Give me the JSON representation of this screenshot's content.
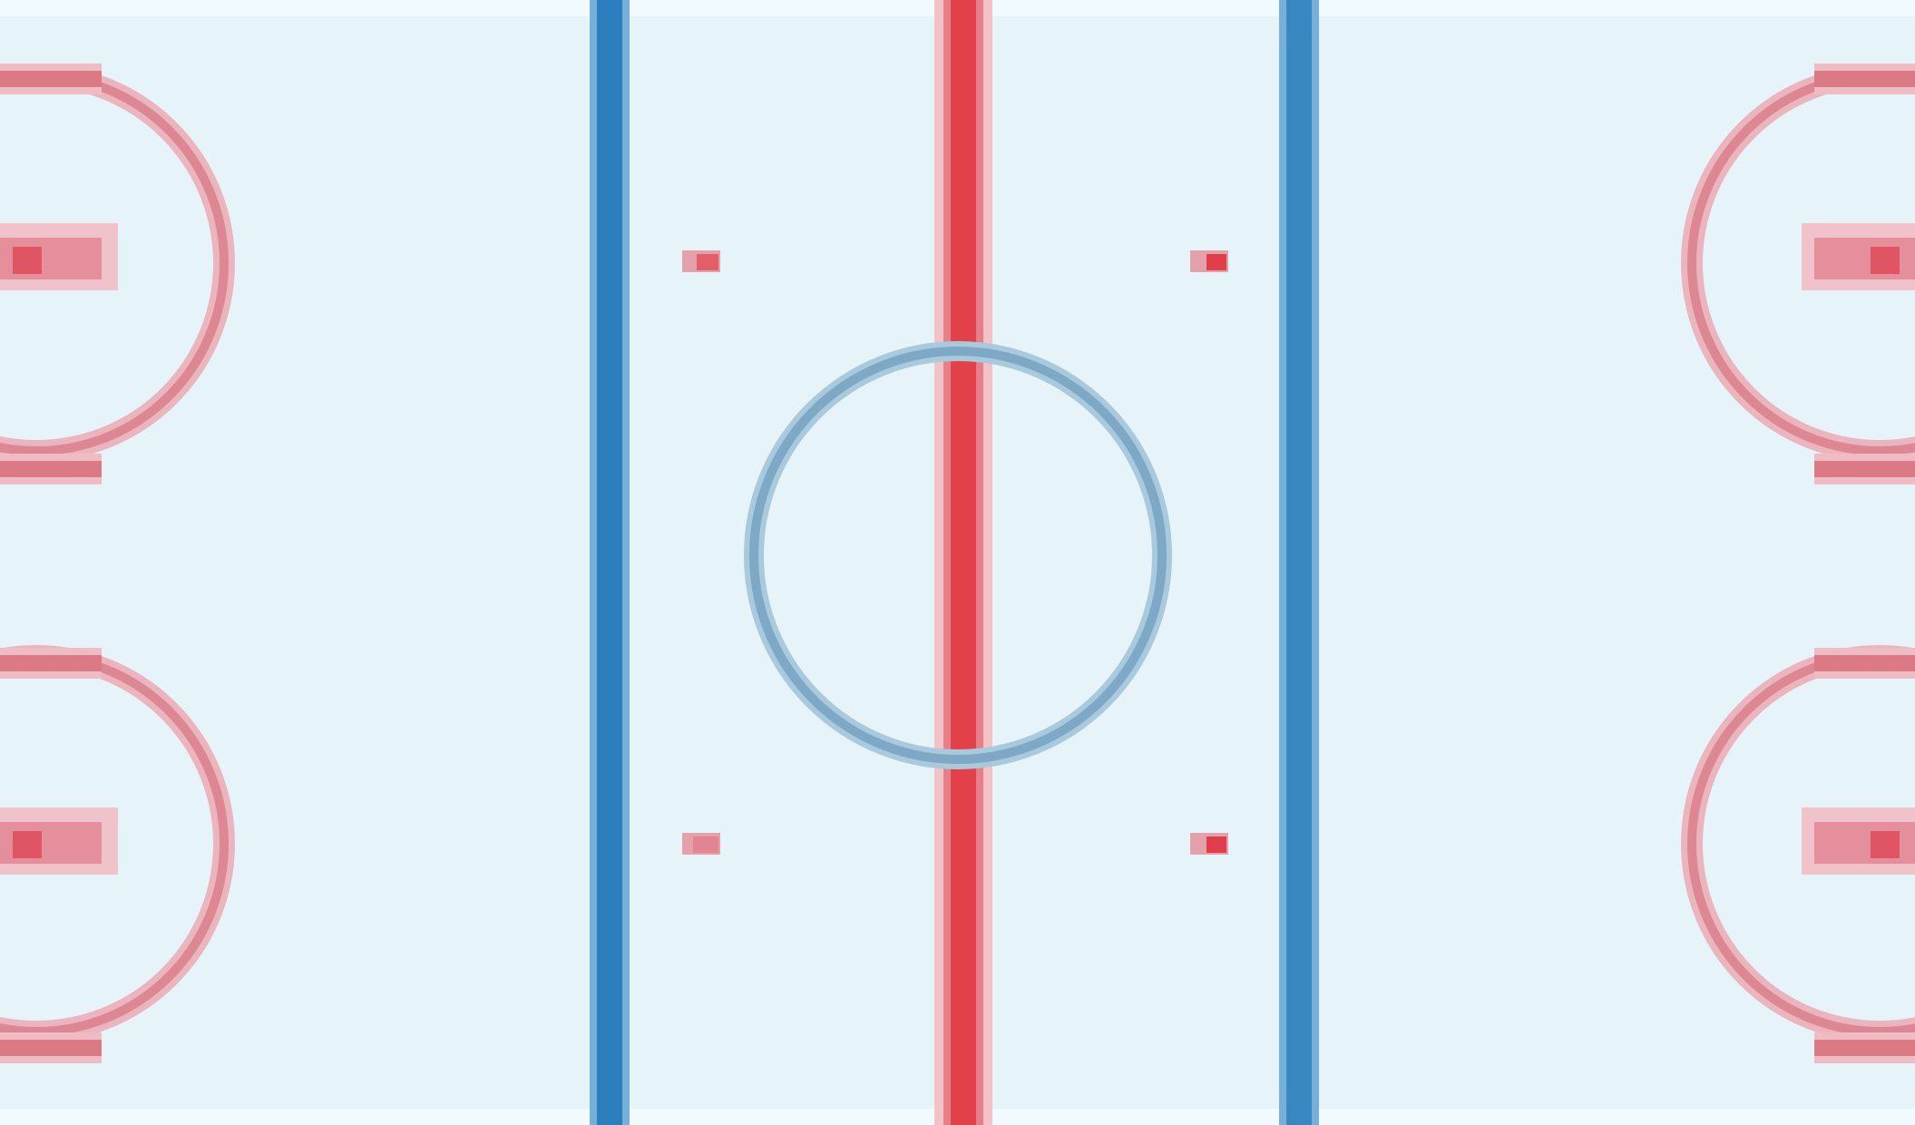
{
  "rink": {
    "view": "neutral-zone",
    "colors": {
      "ice": "#e6f4fa",
      "ice_edge": "#f3fbff",
      "blue_line": "#2b7fbd",
      "blue_line_light": "#76afd8",
      "red_line": "#e04048",
      "red_line_light": "#f0a0a6",
      "faceoff_circle": "#e28b96",
      "faceoff_dot": "#e35c67",
      "center_circle": "#8fb8d0",
      "center_circle_dark": "#6f9fbf"
    },
    "markings": {
      "blue_lines": [
        "left",
        "right"
      ],
      "center_red_line": true,
      "center_circle": true,
      "neutral_zone_dots": 4,
      "end_zone_circles": [
        "left-top",
        "left-bottom",
        "right-top",
        "right-bottom"
      ]
    }
  }
}
